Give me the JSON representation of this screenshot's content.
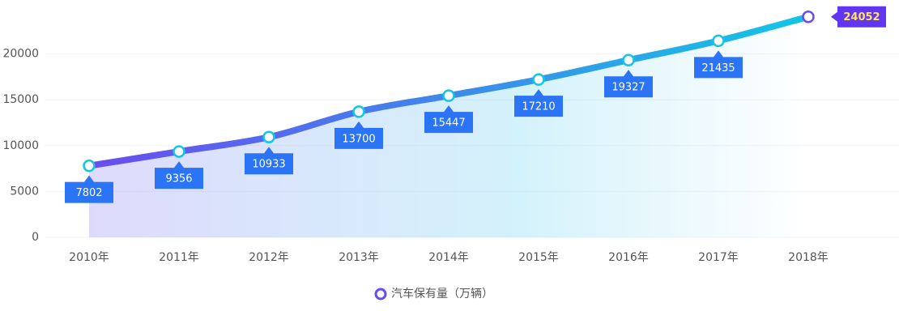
{
  "chart_data": {
    "type": "line",
    "categories": [
      "2010年",
      "2011年",
      "2012年",
      "2013年",
      "2014年",
      "2015年",
      "2016年",
      "2017年",
      "2018年"
    ],
    "series": [
      {
        "name": "汽车保有量（万辆）",
        "color": "#6a4cf0",
        "values": [
          7802,
          9356,
          10933,
          13700,
          15447,
          17210,
          19327,
          21435,
          24052
        ]
      }
    ],
    "ylim": [
      0,
      25000
    ],
    "yticks": [
      0,
      5000,
      10000,
      15000,
      20000
    ],
    "grid": true
  }
}
